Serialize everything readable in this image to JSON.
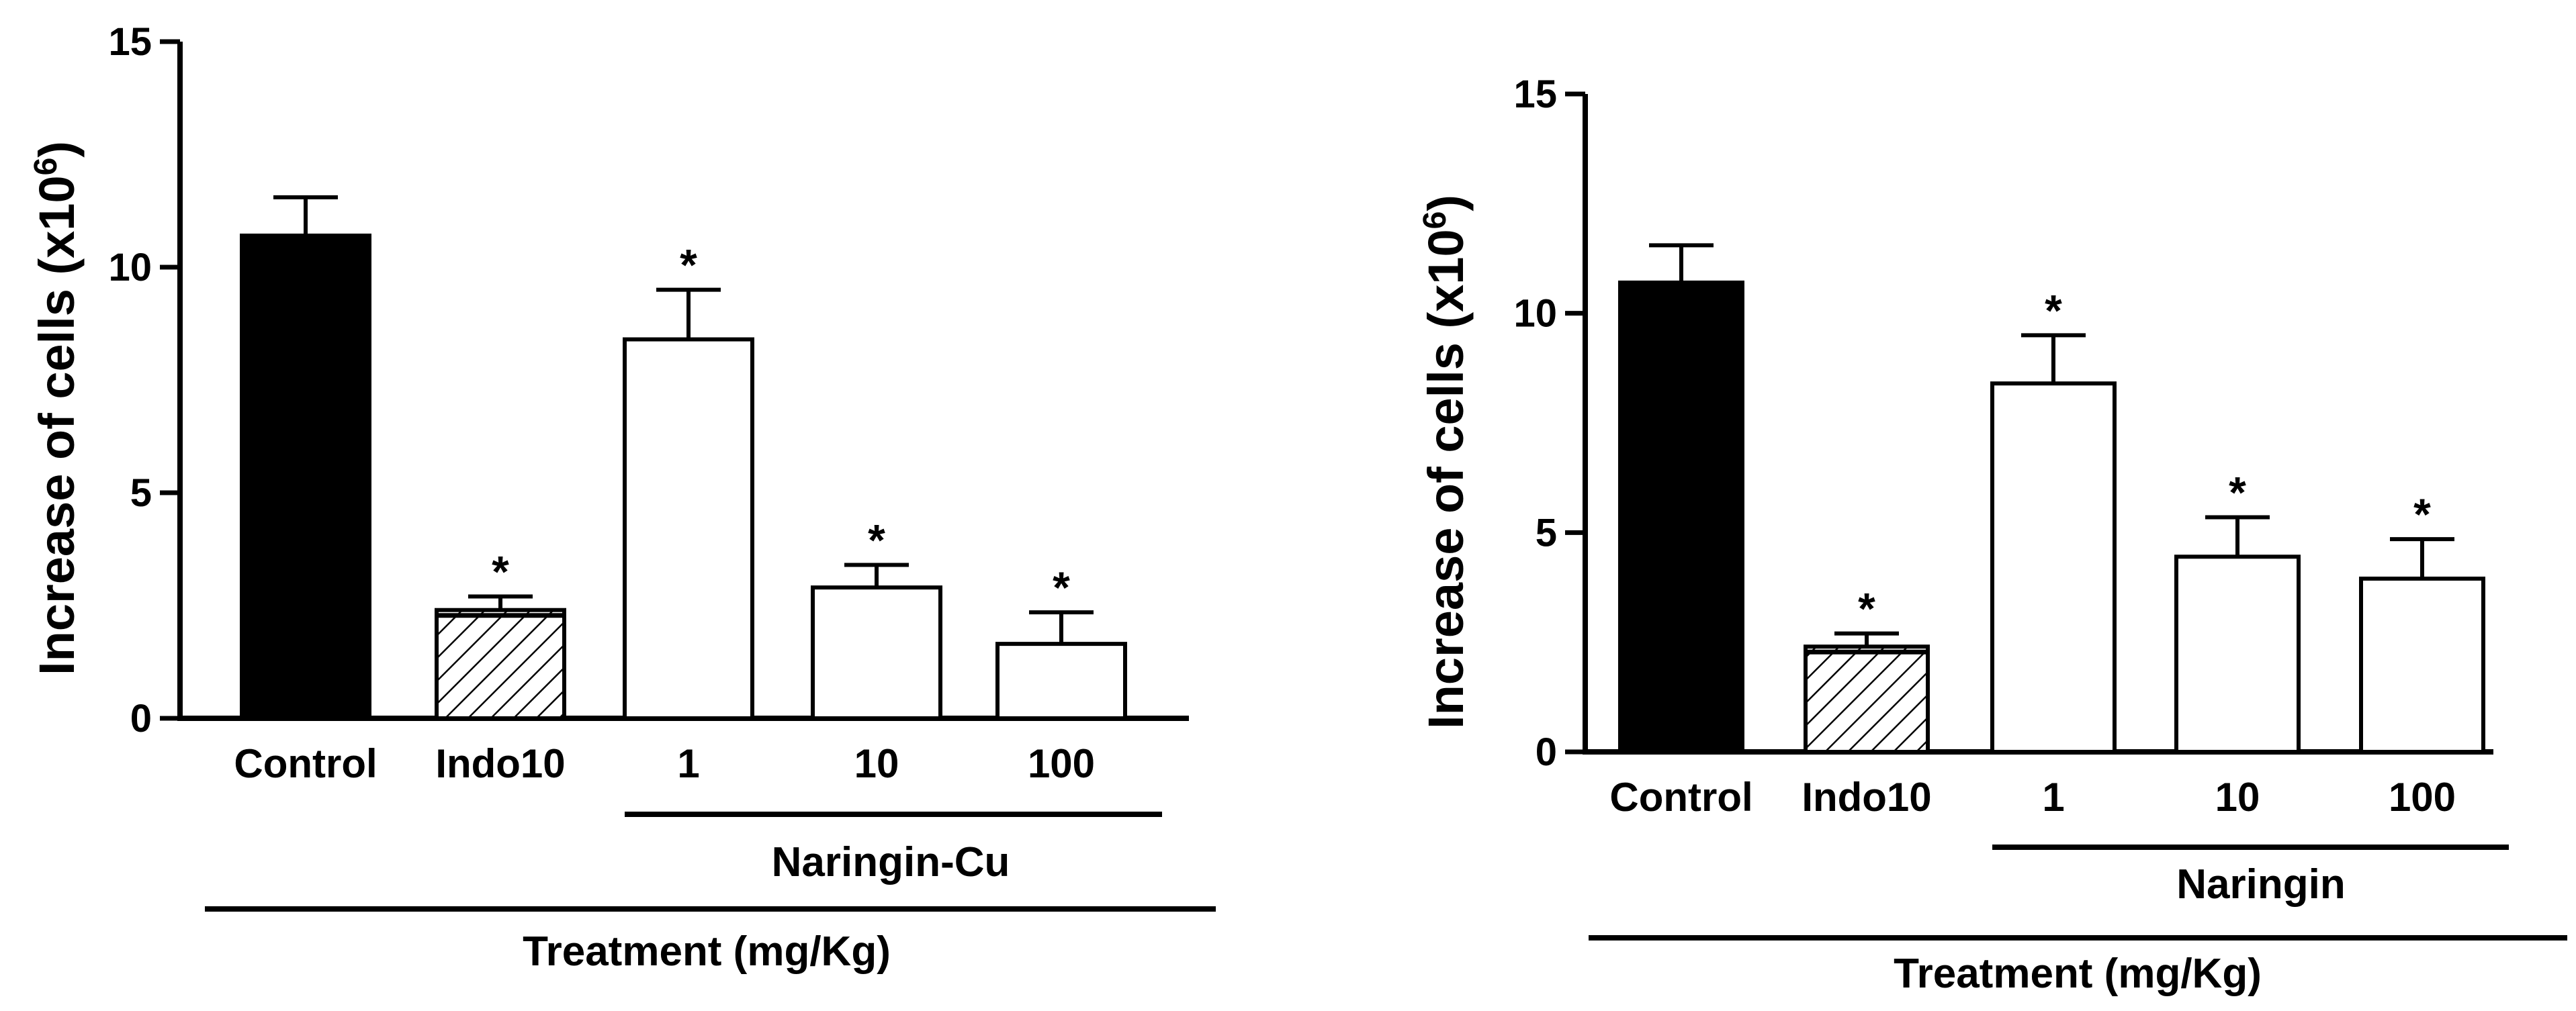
{
  "chart_data": [
    {
      "type": "bar",
      "title": "",
      "ylabel": "Increase of cells (x10",
      "ylabel_sup": "6",
      "ylabel_close": ")",
      "xlabel": "Treatment (mg/Kg)",
      "group_label": "Naringin-Cu",
      "ylim": [
        0,
        15
      ],
      "yticks": [
        "0",
        "5",
        "10",
        "15"
      ],
      "categories": [
        "Control",
        "Indo10",
        "1",
        "10",
        "100"
      ],
      "values": [
        10.7,
        2.4,
        8.4,
        2.9,
        1.65
      ],
      "errors": [
        0.85,
        0.3,
        1.1,
        0.5,
        0.7
      ],
      "significance": [
        "",
        "*",
        "*",
        "*",
        "*"
      ],
      "fills": [
        "solid-black",
        "hatched",
        "white",
        "white",
        "white"
      ]
    },
    {
      "type": "bar",
      "title": "",
      "ylabel": "Increase of cells (x10",
      "ylabel_sup": "6",
      "ylabel_close": ")",
      "xlabel": "Treatment (mg/Kg)",
      "group_label": "Naringin",
      "ylim": [
        0,
        15
      ],
      "yticks": [
        "0",
        "5",
        "10",
        "15"
      ],
      "categories": [
        "Control",
        "Indo10",
        "1",
        "10",
        "100"
      ],
      "values": [
        10.7,
        2.4,
        8.4,
        4.45,
        3.95
      ],
      "errors": [
        0.85,
        0.3,
        1.1,
        0.9,
        0.9
      ],
      "significance": [
        "",
        "*",
        "*",
        "*",
        "*"
      ],
      "fills": [
        "solid-black",
        "hatched",
        "white",
        "white",
        "white"
      ]
    }
  ]
}
